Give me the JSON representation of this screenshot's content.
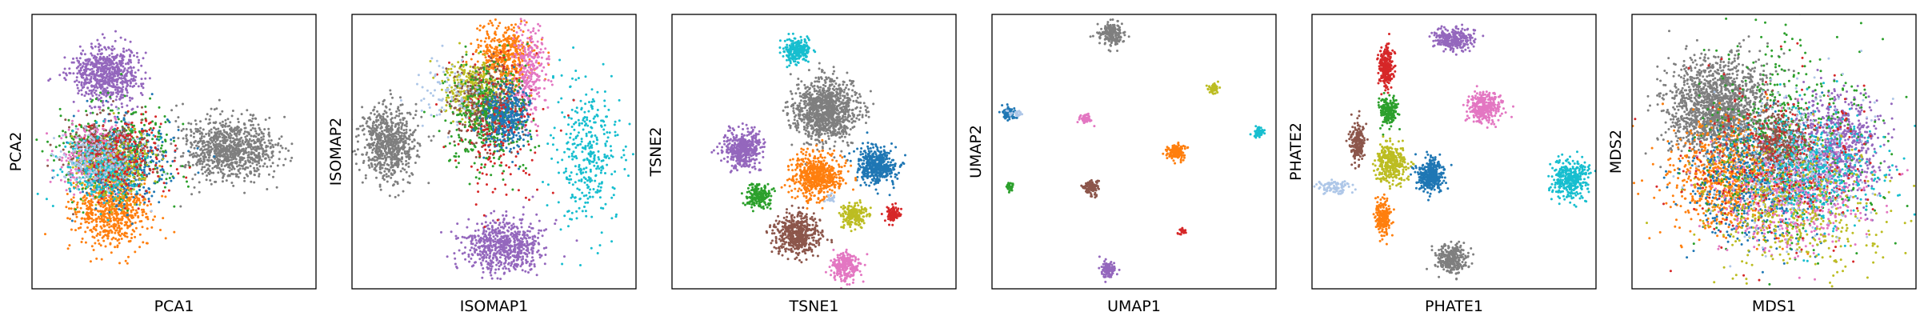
{
  "chart_data": [
    {
      "type": "scatter",
      "title": "",
      "xlabel": "PCA1",
      "ylabel": "PCA2",
      "xlim": [
        0,
        100
      ],
      "ylim": [
        0,
        100
      ],
      "grid": false,
      "legend": "none",
      "clusters": [
        {
          "color": "#9467bd",
          "center": [
            26,
            78
          ],
          "spread": [
            6,
            5
          ],
          "count": 700
        },
        {
          "color": "#7f7f7f",
          "center": [
            70,
            51
          ],
          "spread": [
            8,
            5.5
          ],
          "count": 900
        },
        {
          "color": "#ff7f0e",
          "center": [
            28,
            28
          ],
          "spread": [
            6.5,
            6
          ],
          "count": 650
        },
        {
          "color": "#2ca02c",
          "center": [
            30,
            50
          ],
          "spread": [
            9,
            8
          ],
          "count": 450
        },
        {
          "color": "#1f77b4",
          "center": [
            32,
            46
          ],
          "spread": [
            8,
            8
          ],
          "count": 350
        },
        {
          "color": "#e377c2",
          "center": [
            22,
            49
          ],
          "spread": [
            6,
            6
          ],
          "count": 350
        },
        {
          "color": "#8c564b",
          "center": [
            26,
            50
          ],
          "spread": [
            7,
            6
          ],
          "count": 300
        },
        {
          "color": "#bcbd22",
          "center": [
            28,
            45
          ],
          "spread": [
            7,
            6
          ],
          "count": 300
        },
        {
          "color": "#17becf",
          "center": [
            24,
            44
          ],
          "spread": [
            7,
            6
          ],
          "count": 300
        },
        {
          "color": "#d62728",
          "center": [
            33,
            49
          ],
          "spread": [
            7,
            7
          ],
          "count": 220
        },
        {
          "color": "#aec7e8",
          "center": [
            24,
            47
          ],
          "spread": [
            7,
            6
          ],
          "count": 200
        }
      ]
    },
    {
      "type": "scatter",
      "title": "",
      "xlabel": "ISOMAP1",
      "ylabel": "ISOMAP2",
      "xlim": [
        0,
        100
      ],
      "ylim": [
        0,
        100
      ],
      "grid": false,
      "legend": "none",
      "clusters": [
        {
          "color": "#7f7f7f",
          "center": [
            13,
            53
          ],
          "spread": [
            5,
            7
          ],
          "count": 700
        },
        {
          "color": "#9467bd",
          "center": [
            53,
            16
          ],
          "spread": [
            7,
            5
          ],
          "count": 650
        },
        {
          "color": "#ff7f0e",
          "center": [
            54,
            85
          ],
          "spread": [
            5,
            6
          ],
          "count": 450
        },
        {
          "color": "#e377c2",
          "center": [
            62,
            78
          ],
          "spread": [
            3,
            9
          ],
          "count": 300
        },
        {
          "color": "#bcbd22",
          "center": [
            43,
            73
          ],
          "spread": [
            5,
            5
          ],
          "count": 350
        },
        {
          "color": "#8c564b",
          "center": [
            47,
            67
          ],
          "spread": [
            6,
            7
          ],
          "count": 400
        },
        {
          "color": "#2ca02c",
          "center": [
            48,
            63
          ],
          "spread": [
            7,
            10
          ],
          "count": 400
        },
        {
          "color": "#1f77b4",
          "center": [
            54,
            62
          ],
          "spread": [
            4,
            6
          ],
          "count": 350
        },
        {
          "color": "#17becf",
          "center": [
            83,
            49
          ],
          "spread": [
            6,
            13
          ],
          "count": 350
        },
        {
          "color": "#d62728",
          "center": [
            50,
            58
          ],
          "spread": [
            8,
            14
          ],
          "count": 160
        },
        {
          "color": "#aec7e8",
          "center": [
            36,
            70
          ],
          "spread": [
            6,
            6
          ],
          "count": 90
        }
      ]
    },
    {
      "type": "scatter",
      "title": "",
      "xlabel": "TSNE1",
      "ylabel": "TSNE2",
      "xlim": [
        0,
        100
      ],
      "ylim": [
        0,
        100
      ],
      "grid": false,
      "legend": "none",
      "clusters": [
        {
          "color": "#7f7f7f",
          "center": [
            54,
            65
          ],
          "spread": [
            5.5,
            5.5
          ],
          "count": 1100
        },
        {
          "color": "#17becf",
          "center": [
            44,
            87
          ],
          "spread": [
            2.2,
            2.2
          ],
          "count": 250
        },
        {
          "color": "#9467bd",
          "center": [
            25,
            51
          ],
          "spread": [
            3.4,
            3.4
          ],
          "count": 450
        },
        {
          "color": "#1f77b4",
          "center": [
            72,
            45
          ],
          "spread": [
            3.4,
            3.4
          ],
          "count": 450
        },
        {
          "color": "#ff7f0e",
          "center": [
            51,
            41
          ],
          "spread": [
            4.2,
            4.2
          ],
          "count": 550
        },
        {
          "color": "#2ca02c",
          "center": [
            31,
            34
          ],
          "spread": [
            2.2,
            2.2
          ],
          "count": 200
        },
        {
          "color": "#bcbd22",
          "center": [
            64,
            27
          ],
          "spread": [
            2.2,
            2.2
          ],
          "count": 200
        },
        {
          "color": "#d62728",
          "center": [
            78,
            27
          ],
          "spread": [
            1.2,
            1.2
          ],
          "count": 100
        },
        {
          "color": "#8c564b",
          "center": [
            44,
            20
          ],
          "spread": [
            3.8,
            3.8
          ],
          "count": 500
        },
        {
          "color": "#e377c2",
          "center": [
            61,
            8
          ],
          "spread": [
            2.4,
            2.4
          ],
          "count": 250
        },
        {
          "color": "#aec7e8",
          "center": [
            56,
            33
          ],
          "spread": [
            0.8,
            0.8
          ],
          "count": 20
        }
      ]
    },
    {
      "type": "scatter",
      "title": "",
      "xlabel": "UMAP1",
      "ylabel": "UMAP2",
      "xlim": [
        0,
        100
      ],
      "ylim": [
        0,
        100
      ],
      "grid": false,
      "legend": "none",
      "clusters": [
        {
          "color": "#7f7f7f",
          "center": [
            42,
            93
          ],
          "spread": [
            2,
            2
          ],
          "count": 200
        },
        {
          "color": "#bcbd22",
          "center": [
            78,
            73
          ],
          "spread": [
            1,
            1
          ],
          "count": 50
        },
        {
          "color": "#1f77b4",
          "center": [
            6,
            64
          ],
          "spread": [
            1.2,
            1.2
          ],
          "count": 90
        },
        {
          "color": "#e377c2",
          "center": [
            33,
            62
          ],
          "spread": [
            1,
            1
          ],
          "count": 60
        },
        {
          "color": "#17becf",
          "center": [
            94,
            57
          ],
          "spread": [
            0.9,
            0.9
          ],
          "count": 50
        },
        {
          "color": "#ff7f0e",
          "center": [
            65,
            50
          ],
          "spread": [
            1.6,
            1.6
          ],
          "count": 150
        },
        {
          "color": "#2ca02c",
          "center": [
            6,
            37
          ],
          "spread": [
            0.8,
            0.8
          ],
          "count": 40
        },
        {
          "color": "#8c564b",
          "center": [
            35,
            37
          ],
          "spread": [
            1.3,
            1.3
          ],
          "count": 110
        },
        {
          "color": "#d62728",
          "center": [
            67,
            21
          ],
          "spread": [
            0.6,
            0.6
          ],
          "count": 30
        },
        {
          "color": "#9467bd",
          "center": [
            41,
            7
          ],
          "spread": [
            1.4,
            1.4
          ],
          "count": 110
        },
        {
          "color": "#aec7e8",
          "center": [
            9,
            64
          ],
          "spread": [
            1.5,
            0.5
          ],
          "count": 25
        }
      ]
    },
    {
      "type": "scatter",
      "title": "",
      "xlabel": "PHATE1",
      "ylabel": "PHATE2",
      "xlim": [
        0,
        100
      ],
      "ylim": [
        0,
        100
      ],
      "grid": false,
      "legend": "none",
      "clusters": [
        {
          "color": "#9467bd",
          "center": [
            50,
            91
          ],
          "spread": [
            3.5,
            2
          ],
          "count": 300
        },
        {
          "color": "#d62728",
          "center": [
            26,
            81
          ],
          "spread": [
            1.2,
            3.5
          ],
          "count": 250
        },
        {
          "color": "#e377c2",
          "center": [
            61,
            66
          ],
          "spread": [
            3,
            2.8
          ],
          "count": 300
        },
        {
          "color": "#2ca02c",
          "center": [
            27,
            65
          ],
          "spread": [
            1.6,
            2.5
          ],
          "count": 200
        },
        {
          "color": "#8c564b",
          "center": [
            16,
            53
          ],
          "spread": [
            1.3,
            3.5
          ],
          "count": 200
        },
        {
          "color": "#bcbd22",
          "center": [
            28,
            46
          ],
          "spread": [
            2.8,
            3.5
          ],
          "count": 350
        },
        {
          "color": "#1f77b4",
          "center": [
            42,
            41
          ],
          "spread": [
            2.4,
            3
          ],
          "count": 350
        },
        {
          "color": "#17becf",
          "center": [
            91,
            40
          ],
          "spread": [
            3.2,
            3.5
          ],
          "count": 350
        },
        {
          "color": "#aec7e8",
          "center": [
            8,
            37
          ],
          "spread": [
            3,
            1.5
          ],
          "count": 90
        },
        {
          "color": "#ff7f0e",
          "center": [
            25,
            26
          ],
          "spread": [
            1.5,
            3
          ],
          "count": 200
        },
        {
          "color": "#7f7f7f",
          "center": [
            49,
            11
          ],
          "spread": [
            2.5,
            2.5
          ],
          "count": 300
        }
      ]
    },
    {
      "type": "scatter",
      "title": "",
      "xlabel": "MDS1",
      "ylabel": "MDS2",
      "xlim": [
        0,
        100
      ],
      "ylim": [
        0,
        100
      ],
      "grid": false,
      "legend": "none",
      "clusters": [
        {
          "color": "#7f7f7f",
          "center": [
            30,
            66
          ],
          "spread": [
            9,
            9
          ],
          "count": 1600
        },
        {
          "color": "#ff7f0e",
          "center": [
            35,
            40
          ],
          "spread": [
            11,
            10
          ],
          "count": 800
        },
        {
          "color": "#1f77b4",
          "center": [
            45,
            38
          ],
          "spread": [
            12,
            11
          ],
          "count": 550
        },
        {
          "color": "#9467bd",
          "center": [
            73,
            52
          ],
          "spread": [
            8,
            9
          ],
          "count": 700
        },
        {
          "color": "#2ca02c",
          "center": [
            55,
            55
          ],
          "spread": [
            14,
            18
          ],
          "count": 550
        },
        {
          "color": "#8c564b",
          "center": [
            52,
            53
          ],
          "spread": [
            5,
            6
          ],
          "count": 350
        },
        {
          "color": "#e377c2",
          "center": [
            58,
            34
          ],
          "spread": [
            13,
            10
          ],
          "count": 500
        },
        {
          "color": "#17becf",
          "center": [
            64,
            44
          ],
          "spread": [
            12,
            10
          ],
          "count": 450
        },
        {
          "color": "#bcbd22",
          "center": [
            55,
            30
          ],
          "spread": [
            16,
            12
          ],
          "count": 450
        },
        {
          "color": "#d62728",
          "center": [
            52,
            45
          ],
          "spread": [
            16,
            15
          ],
          "count": 300
        },
        {
          "color": "#aec7e8",
          "center": [
            57,
            45
          ],
          "spread": [
            14,
            14
          ],
          "count": 250
        }
      ]
    }
  ]
}
